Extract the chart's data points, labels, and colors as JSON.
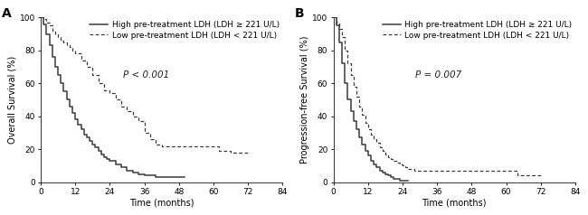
{
  "panel_A": {
    "label": "A",
    "ylabel": "Overall Survival (%)",
    "xlabel": "Time (months)",
    "pvalue": "P < 0.001",
    "xlim": [
      0,
      84
    ],
    "ylim": [
      0,
      100
    ],
    "xticks": [
      0,
      12,
      24,
      36,
      48,
      60,
      72,
      84
    ],
    "yticks": [
      0,
      20,
      40,
      60,
      80,
      100
    ],
    "high_x": [
      0,
      1,
      2,
      3,
      4,
      5,
      6,
      7,
      8,
      9,
      10,
      11,
      12,
      13,
      14,
      15,
      16,
      17,
      18,
      19,
      20,
      21,
      22,
      23,
      24,
      26,
      28,
      30,
      32,
      34,
      36,
      38,
      40,
      42,
      44,
      48,
      50
    ],
    "high_y": [
      100,
      96,
      90,
      83,
      76,
      70,
      65,
      60,
      55,
      50,
      46,
      42,
      38,
      35,
      32,
      29,
      27,
      25,
      23,
      21,
      19,
      17,
      15,
      14,
      13,
      11,
      9,
      7,
      6,
      5,
      4,
      4,
      3,
      3,
      3,
      3,
      3
    ],
    "low_x": [
      0,
      1,
      2,
      3,
      4,
      5,
      6,
      7,
      8,
      9,
      10,
      11,
      12,
      14,
      16,
      18,
      20,
      22,
      24,
      26,
      28,
      30,
      32,
      34,
      36,
      38,
      40,
      42,
      44,
      46,
      48,
      50,
      52,
      54,
      56,
      58,
      60,
      62,
      64,
      66,
      68,
      70,
      72
    ],
    "low_y": [
      100,
      99,
      97,
      95,
      92,
      90,
      88,
      86,
      85,
      83,
      82,
      80,
      78,
      74,
      70,
      65,
      60,
      56,
      54,
      50,
      46,
      43,
      40,
      37,
      30,
      26,
      23,
      22,
      22,
      22,
      22,
      22,
      22,
      22,
      22,
      22,
      22,
      19,
      19,
      18,
      18,
      18,
      18
    ]
  },
  "panel_B": {
    "label": "B",
    "ylabel": "Progression-free Survival (%)",
    "xlabel": "Time (months)",
    "pvalue": "P = 0.007",
    "xlim": [
      0,
      84
    ],
    "ylim": [
      0,
      100
    ],
    "xticks": [
      0,
      12,
      24,
      36,
      48,
      60,
      72,
      84
    ],
    "yticks": [
      0,
      20,
      40,
      60,
      80,
      100
    ],
    "high_x": [
      0,
      1,
      2,
      3,
      4,
      5,
      6,
      7,
      8,
      9,
      10,
      11,
      12,
      13,
      14,
      15,
      16,
      17,
      18,
      19,
      20,
      21,
      22,
      23,
      24,
      25,
      26
    ],
    "high_y": [
      100,
      95,
      85,
      72,
      60,
      50,
      43,
      37,
      32,
      27,
      23,
      19,
      16,
      13,
      11,
      9,
      7,
      6,
      5,
      4,
      3,
      2,
      2,
      1,
      1,
      1,
      1
    ],
    "low_x": [
      0,
      1,
      2,
      3,
      4,
      5,
      6,
      7,
      8,
      9,
      10,
      11,
      12,
      13,
      14,
      15,
      16,
      17,
      18,
      19,
      20,
      21,
      22,
      23,
      24,
      25,
      26,
      27,
      28,
      30,
      32,
      34,
      36,
      38,
      40,
      42,
      44,
      46,
      48,
      50,
      52,
      54,
      56,
      58,
      60,
      62,
      64,
      66,
      68,
      70,
      72
    ],
    "low_y": [
      100,
      97,
      93,
      88,
      80,
      72,
      65,
      58,
      52,
      46,
      41,
      36,
      32,
      29,
      26,
      24,
      21,
      19,
      17,
      15,
      14,
      13,
      12,
      11,
      10,
      9,
      8,
      8,
      7,
      7,
      7,
      7,
      7,
      7,
      7,
      7,
      7,
      7,
      7,
      7,
      7,
      7,
      7,
      7,
      7,
      7,
      4,
      4,
      4,
      4,
      4
    ]
  },
  "legend_high": "High pre-treatment LDH (LDH ≥ 221 U/L)",
  "legend_low": "Low pre-treatment LDH (LDH < 221 U/L)",
  "line_color": "#3a3a3a",
  "bg_color": "#ffffff",
  "font_size": 7,
  "label_font_size": 10,
  "tick_font_size": 6.5,
  "legend_font_size": 6.5,
  "pvalue_font_size": 7.5
}
